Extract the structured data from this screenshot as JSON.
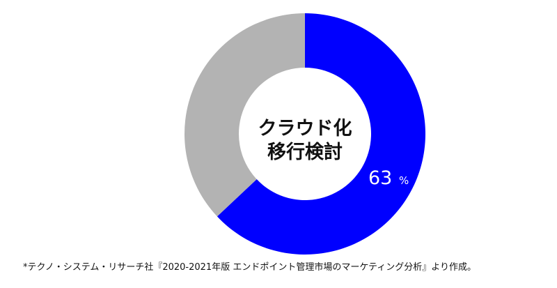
{
  "chart_data": {
    "type": "pie",
    "donut": true,
    "center_label_lines": [
      "クラウド化",
      "移行検討"
    ],
    "slices": [
      {
        "value": 63,
        "color": "#0000ff"
      },
      {
        "value": 37,
        "color": "#b3b3b3"
      }
    ],
    "data_label": {
      "value": "63",
      "unit": "%"
    }
  },
  "source_note": "*テクノ・システム・リサーチ社『2020-2021年版 エンドポイント管理市場のマーケティング分析』より作成。"
}
